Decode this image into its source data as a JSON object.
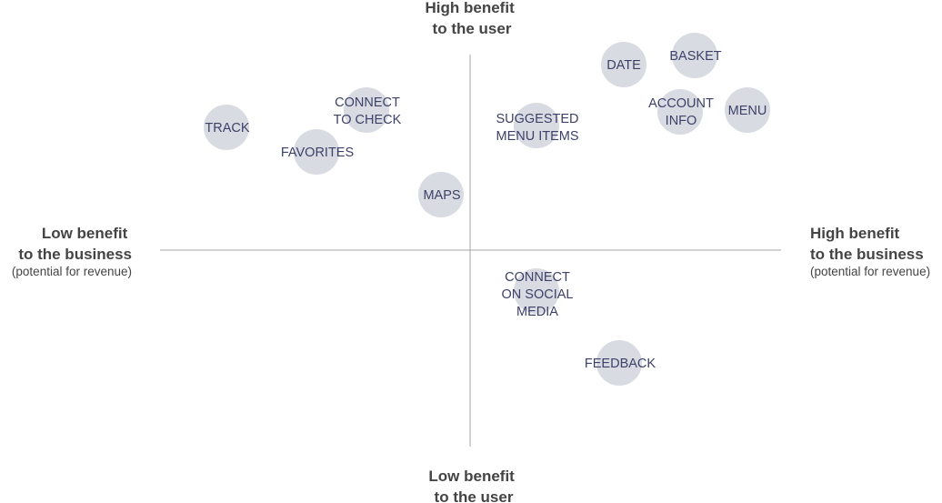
{
  "axes": {
    "top": {
      "lines": [
        "High benefit",
        "to the user"
      ]
    },
    "bottom": {
      "lines": [
        "Low benefit",
        "to the user"
      ]
    },
    "left": {
      "lines": [
        "Low benefit",
        "to the business"
      ],
      "note": "(potential for revenue)"
    },
    "right": {
      "lines": [
        "High benefit",
        "to the business"
      ],
      "note": "(potential for revenue)"
    }
  },
  "colors": {
    "bubble": "#d9dbe3",
    "label": "#3d4168",
    "axis_text": "#444444",
    "axis_line": "#a7a7a7"
  },
  "items": [
    {
      "lines": [
        "DATE"
      ]
    },
    {
      "lines": [
        "BASKET"
      ]
    },
    {
      "lines": [
        "ACCOUNT",
        "INFO"
      ]
    },
    {
      "lines": [
        "MENU"
      ]
    },
    {
      "lines": [
        "CONNECT",
        "TO CHECK"
      ]
    },
    {
      "lines": [
        "TRACK"
      ]
    },
    {
      "lines": [
        "FAVORITES"
      ]
    },
    {
      "lines": [
        "SUGGESTED",
        "MENU ITEMS"
      ]
    },
    {
      "lines": [
        "MAPS"
      ]
    },
    {
      "lines": [
        "CONNECT",
        "ON SOCIAL",
        "MEDIA"
      ]
    },
    {
      "lines": [
        "FEEDBACK"
      ]
    }
  ]
}
